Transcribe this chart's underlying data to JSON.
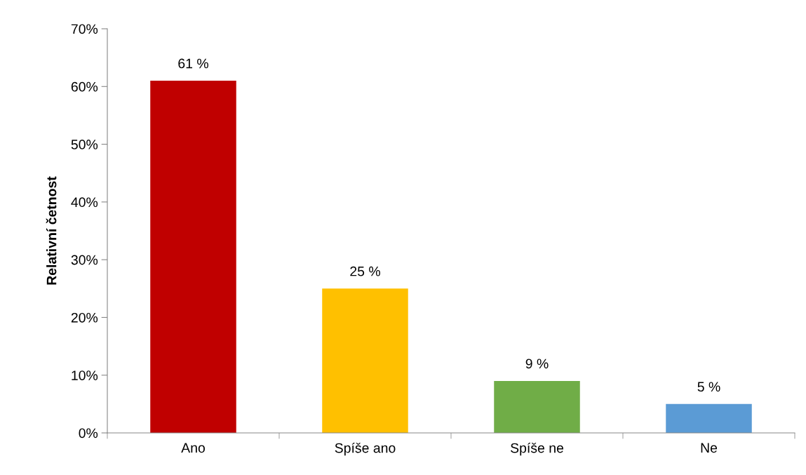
{
  "chart_data": {
    "type": "bar",
    "ylabel": "Relativní četnost",
    "categories": [
      "Ano",
      "Spíše ano",
      "Spíše ne",
      "Ne"
    ],
    "values": [
      61,
      25,
      9,
      5
    ],
    "colors": [
      "#c00000",
      "#ffc000",
      "#70ad47",
      "#5b9bd5"
    ],
    "value_labels": [
      "61 %",
      "25 %",
      "9 %",
      "5 %"
    ],
    "ylim": [
      0,
      70
    ],
    "yticks": [
      {
        "value": 0,
        "label": "0%"
      },
      {
        "value": 10,
        "label": "10%"
      },
      {
        "value": 20,
        "label": "20%"
      },
      {
        "value": 30,
        "label": "30%"
      },
      {
        "value": 40,
        "label": "40%"
      },
      {
        "value": 50,
        "label": "50%"
      },
      {
        "value": 60,
        "label": "60%"
      },
      {
        "value": 70,
        "label": "70%"
      }
    ],
    "grid": false
  }
}
